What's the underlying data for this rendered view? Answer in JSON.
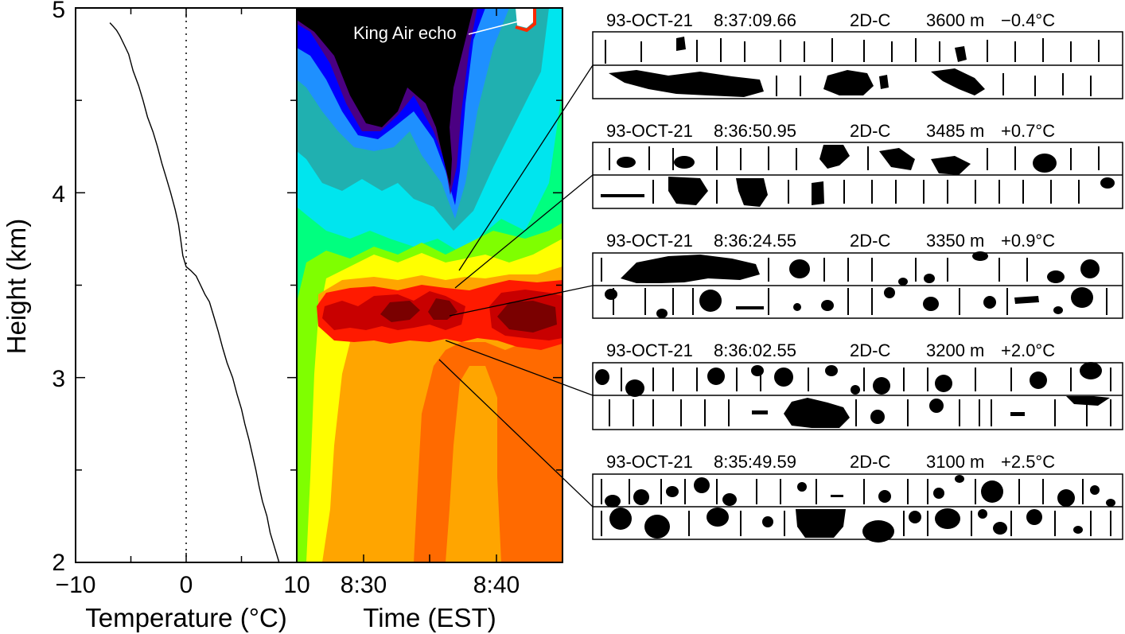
{
  "chart_data": [
    {
      "type": "line",
      "xlabel": "Temperature (°C)",
      "ylabel": "Height (km)",
      "xlim": [
        -10,
        10
      ],
      "ylim": [
        2,
        5
      ],
      "x_ticks": [
        "−10",
        "0",
        "10"
      ],
      "y_ticks": [
        "2",
        "3",
        "4",
        "5"
      ],
      "zero_line": "dotted",
      "series": [
        {
          "x": [
            8.4,
            8.0,
            7.6,
            7.3,
            6.9,
            6.6,
            6.3,
            6.0,
            5.7,
            5.3,
            5.0,
            4.6,
            4.2,
            3.7,
            3.3,
            2.9,
            2.5,
            2.1,
            1.7,
            1.3,
            0.9,
            0.4,
            0.0,
            -0.3,
            -0.5,
            -0.7,
            -1.0,
            -1.4,
            -1.8,
            -2.2,
            -2.6,
            -3.0,
            -3.5,
            -3.9,
            -4.3,
            -4.8,
            -5.2,
            -5.6,
            -6.0,
            -6.3,
            -6.6,
            -6.9
          ],
          "y": [
            2.0,
            2.08,
            2.16,
            2.25,
            2.33,
            2.41,
            2.5,
            2.58,
            2.66,
            2.75,
            2.83,
            2.91,
            3.0,
            3.08,
            3.16,
            3.25,
            3.33,
            3.41,
            3.45,
            3.5,
            3.55,
            3.58,
            3.6,
            3.66,
            3.75,
            3.83,
            3.91,
            4.0,
            4.08,
            4.16,
            4.25,
            4.33,
            4.41,
            4.5,
            4.58,
            4.66,
            4.75,
            4.8,
            4.85,
            4.88,
            4.9,
            4.92
          ]
        }
      ]
    },
    {
      "type": "heatmap",
      "xlabel": "Time (EST)",
      "ylim": [
        2,
        5
      ],
      "x_ticks": [
        "8:30",
        "8:40"
      ],
      "colors": [
        "#000000",
        "#4b0082",
        "#0000ff",
        "#1e90ff",
        "#00e5ee",
        "#20c0a0",
        "#00ff7f",
        "#7fff00",
        "#ffff00",
        "#ffa500",
        "#ff6a00",
        "#ff0000",
        "#c80000",
        "#7a0000"
      ],
      "annotation": "King Air echo"
    }
  ],
  "panels": [
    {
      "date": "93-OCT-21",
      "time": "8:37:09.66",
      "probe": "2D-C",
      "alt": "3600 m",
      "temp": "−0.4°C"
    },
    {
      "date": "93-OCT-21",
      "time": "8:36:50.95",
      "probe": "2D-C",
      "alt": "3485 m",
      "temp": "+0.7°C"
    },
    {
      "date": "93-OCT-21",
      "time": "8:36:24.55",
      "probe": "2D-C",
      "alt": "3350 m",
      "temp": "+0.9°C"
    },
    {
      "date": "93-OCT-21",
      "time": "8:36:02.55",
      "probe": "2D-C",
      "alt": "3200 m",
      "temp": "+2.0°C"
    },
    {
      "date": "93-OCT-21",
      "time": "8:35:49.59",
      "probe": "2D-C",
      "alt": "3100 m",
      "temp": "+2.5°C"
    }
  ]
}
